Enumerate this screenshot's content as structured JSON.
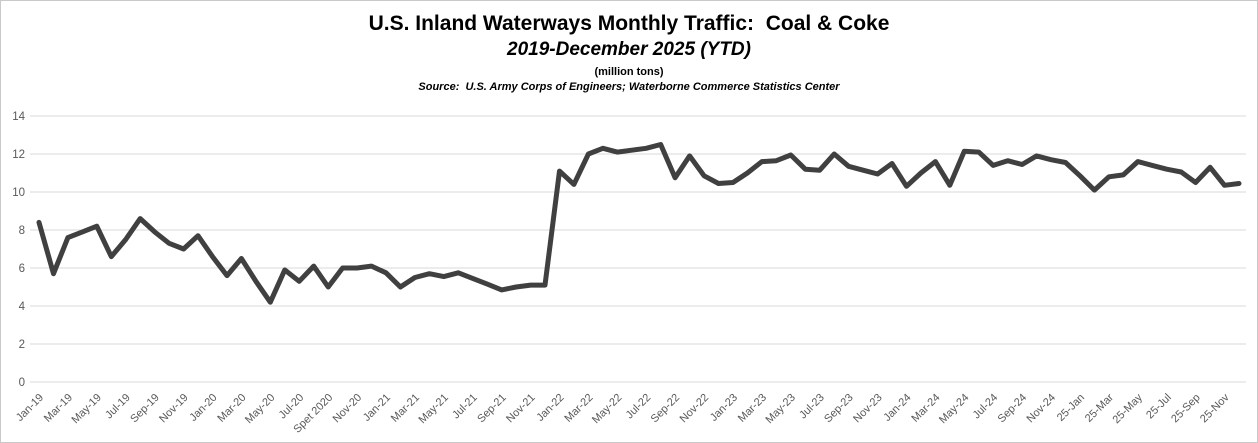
{
  "header": {
    "title": "U.S. Inland Waterways Monthly Traffic:  Coal & Coke",
    "subtitle": "2019-December 2025 (YTD)",
    "units_label": "(million tons)",
    "source": "Source:  U.S. Army Corps of Engineers; Waterborne Commerce Statistics Center"
  },
  "colors": {
    "line": "#404040",
    "gridline": "#d9d9d9",
    "axis_text": "#595959",
    "title_text": "#000000",
    "border": "#c9c9c9",
    "background": "#ffffff"
  },
  "chart_data": {
    "type": "line",
    "title": "U.S. Inland Waterways Monthly Traffic:  Coal & Coke",
    "subtitle": "2019-December 2025 (YTD)",
    "ylabel": "million tons",
    "xlabel": "",
    "legend": "none",
    "grid": "horizontal",
    "ylim": [
      0,
      14
    ],
    "y_ticks": [
      0,
      2,
      4,
      6,
      8,
      10,
      12,
      14
    ],
    "x_start": "Jan-2019",
    "x_end": "Dec-2025",
    "frequency": "monthly",
    "n_points": 84,
    "x_tick_labels": [
      "Jan-19",
      "Mar-19",
      "May-19",
      "Jul-19",
      "Sep-19",
      "Nov-19",
      "Jan-20",
      "Mar-20",
      "May-20",
      "Jul-20",
      "Spet 2020",
      "Nov-20",
      "Jan-21",
      "Mar-21",
      "May-21",
      "Jul-21",
      "Sep-21",
      "Nov-21",
      "Jan-22",
      "Mar-22",
      "May-22",
      "Jul-22",
      "Sep-22",
      "Nov-22",
      "Jan-23",
      "Mar-23",
      "May-23",
      "Jul-23",
      "Sep-23",
      "Nov-23",
      "Jan-24",
      "Mar-24",
      "May-24",
      "Jul-24",
      "Sep-24",
      "Nov-24",
      "25-Jan",
      "25-Mar",
      "25-May",
      "25-Jul",
      "25-Sep",
      "25-Nov"
    ],
    "series": [
      {
        "name": "Coal & Coke monthly tonnage",
        "values": [
          8.4,
          5.7,
          7.6,
          7.9,
          8.2,
          6.6,
          7.5,
          8.6,
          7.9,
          7.3,
          7.0,
          7.7,
          6.6,
          5.6,
          6.5,
          5.3,
          4.2,
          5.9,
          5.3,
          6.1,
          5.0,
          6.0,
          6.0,
          6.1,
          5.75,
          5.0,
          5.5,
          5.7,
          5.55,
          5.75,
          5.45,
          5.15,
          4.85,
          5.0,
          5.1,
          5.1,
          11.1,
          10.4,
          12.0,
          12.3,
          12.1,
          12.2,
          12.3,
          12.5,
          10.75,
          11.9,
          10.85,
          10.45,
          10.5,
          11.0,
          11.6,
          11.65,
          11.95,
          11.2,
          11.15,
          12.0,
          11.35,
          11.15,
          10.95,
          11.5,
          10.3,
          11.0,
          11.6,
          10.35,
          12.15,
          12.1,
          11.4,
          11.65,
          11.45,
          11.9,
          11.7,
          11.55,
          10.85,
          10.1,
          10.8,
          10.9,
          11.6,
          11.4,
          11.2,
          11.05,
          10.5,
          11.3,
          10.35,
          10.45
        ]
      }
    ]
  }
}
